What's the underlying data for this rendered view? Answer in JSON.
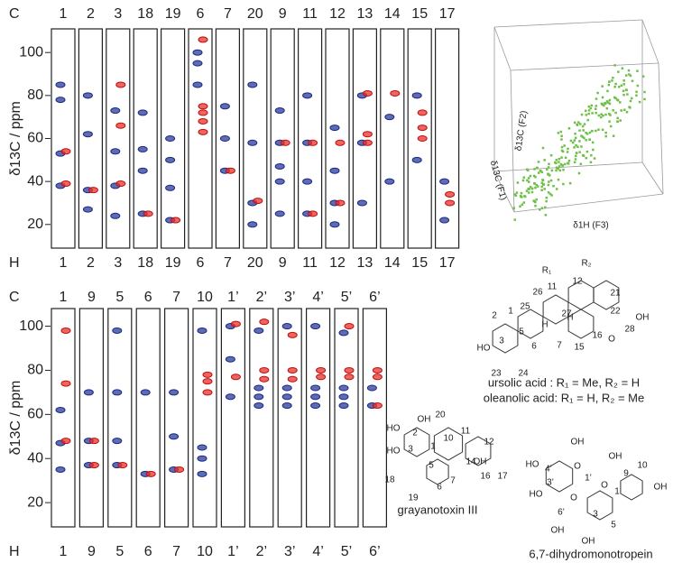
{
  "panels": [
    {
      "c_label": "C",
      "h_label": "H",
      "axis_label": "δ13C / ppm",
      "yticks": [
        20,
        40,
        60,
        80,
        100
      ],
      "ylim": [
        9,
        111
      ],
      "columns": [
        {
          "label": "1",
          "blue": [
            38,
            53,
            78,
            85
          ],
          "red": [
            39,
            54
          ]
        },
        {
          "label": "2",
          "blue": [
            27,
            36,
            62,
            80
          ],
          "red": [
            36
          ]
        },
        {
          "label": "3",
          "blue": [
            24,
            38,
            54,
            73
          ],
          "red": [
            39,
            66,
            85
          ]
        },
        {
          "label": "18",
          "blue": [
            25,
            45,
            55,
            72
          ],
          "red": [
            25
          ]
        },
        {
          "label": "19",
          "blue": [
            22,
            37,
            50,
            60
          ],
          "red": [
            22
          ]
        },
        {
          "label": "6",
          "blue": [
            85,
            95,
            100
          ],
          "red": [
            63,
            68,
            72,
            75,
            106
          ]
        },
        {
          "label": "7",
          "blue": [
            45,
            60,
            75
          ],
          "red": [
            45
          ]
        },
        {
          "label": "20",
          "blue": [
            20,
            30,
            58,
            85
          ],
          "red": [
            31
          ]
        },
        {
          "label": "9",
          "blue": [
            25,
            40,
            47,
            58,
            73
          ],
          "red": [
            58
          ]
        },
        {
          "label": "11",
          "blue": [
            25,
            40,
            58,
            80
          ],
          "red": [
            25,
            58
          ]
        },
        {
          "label": "12",
          "blue": [
            20,
            30,
            45,
            65
          ],
          "red": [
            30,
            58
          ]
        },
        {
          "label": "13",
          "blue": [
            30,
            58,
            80
          ],
          "red": [
            58,
            62,
            81
          ]
        },
        {
          "label": "14",
          "blue": [
            40,
            70
          ],
          "red": [
            81
          ]
        },
        {
          "label": "15",
          "blue": [
            50,
            80
          ],
          "red": [
            60,
            65,
            72
          ]
        },
        {
          "label": "17",
          "blue": [
            22,
            40
          ],
          "red": [
            30,
            34
          ]
        }
      ]
    },
    {
      "c_label": "C",
      "h_label": "H",
      "axis_label": "δ13C / ppm",
      "yticks": [
        20,
        40,
        60,
        80,
        100
      ],
      "ylim": [
        9,
        108
      ],
      "columns": [
        {
          "label": "1",
          "blue": [
            35,
            47,
            62
          ],
          "red": [
            48,
            74,
            98
          ]
        },
        {
          "label": "9",
          "blue": [
            37,
            48,
            70
          ],
          "red": [
            37,
            48
          ]
        },
        {
          "label": "5",
          "blue": [
            37,
            48,
            70,
            98
          ],
          "red": [
            37
          ]
        },
        {
          "label": "6",
          "blue": [
            33,
            70
          ],
          "red": [
            33
          ]
        },
        {
          "label": "7",
          "blue": [
            35,
            50,
            70
          ],
          "red": [
            35
          ]
        },
        {
          "label": "10",
          "blue": [
            33,
            40,
            45,
            98
          ],
          "red": [
            70,
            75,
            78
          ]
        },
        {
          "label": "1’",
          "blue": [
            68,
            85,
            100
          ],
          "red": [
            77,
            101
          ]
        },
        {
          "label": "2’",
          "blue": [
            64,
            68,
            72,
            98
          ],
          "red": [
            76,
            80,
            102
          ]
        },
        {
          "label": "3’",
          "blue": [
            64,
            68,
            72,
            100
          ],
          "red": [
            76,
            80,
            96
          ]
        },
        {
          "label": "4’",
          "blue": [
            64,
            68,
            72,
            100
          ],
          "red": [
            77,
            80
          ]
        },
        {
          "label": "5’",
          "blue": [
            64,
            68,
            72,
            97
          ],
          "red": [
            77,
            80,
            100
          ]
        },
        {
          "label": "6’",
          "blue": [
            64,
            72
          ],
          "red": [
            64,
            77,
            80
          ]
        }
      ]
    }
  ],
  "inset": {
    "axis_labels": [
      "δ13C (F2)",
      "δ13C (F1)",
      "δ1H (F3)"
    ]
  },
  "structures": [
    {
      "captions": [
        "ursolic acid : R₁ = Me, R₂ = H",
        "oleanolic acid: R₁ = H, R₂ = Me"
      ],
      "atoms": [
        "R₁",
        "R₂",
        "21",
        "22",
        "OH",
        "28",
        "O",
        "16",
        "15",
        "7",
        "6",
        "5",
        "H",
        "H",
        "24",
        "23",
        "HO",
        "3",
        "2",
        "1",
        "25",
        "26",
        "11",
        "12",
        "27"
      ]
    },
    {
      "captions": [
        "grayanotoxin III"
      ],
      "atoms": [
        "HO",
        "20",
        "HO",
        "3",
        "2",
        "1",
        "10",
        "11",
        "12",
        "18",
        "19",
        "5",
        "6",
        "7",
        "14",
        "16",
        "17",
        "OH",
        "OH"
      ]
    },
    {
      "captions": [
        "6,7-dihydromonotropein"
      ],
      "atoms": [
        "OH",
        "HO",
        "4’",
        "3’",
        "HO",
        "O",
        "1’",
        "6’",
        "OH",
        "OH",
        "9",
        "10",
        "OH",
        "3",
        "5",
        "O",
        "OH",
        "1",
        "O"
      ]
    }
  ]
}
